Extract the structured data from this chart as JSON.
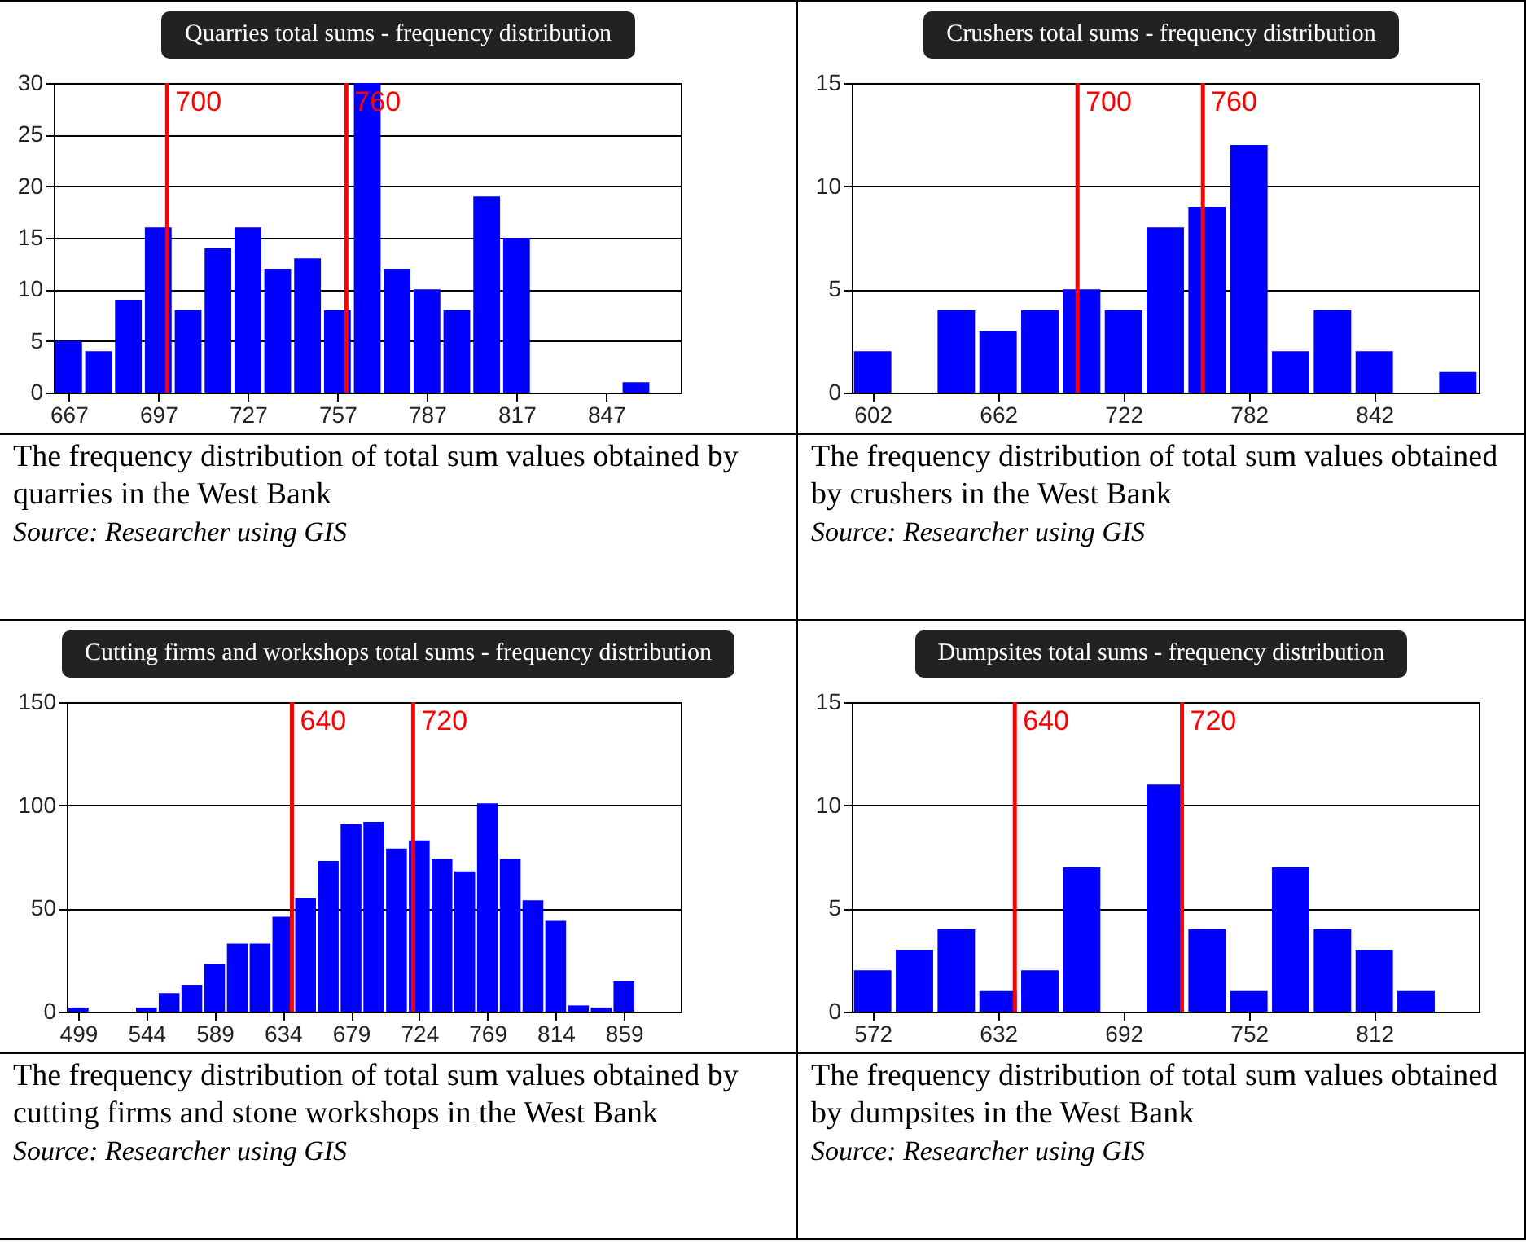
{
  "chart_data": [
    {
      "type": "bar",
      "title": "Quarries total sums - frequency distribution",
      "x": [
        667,
        677,
        687,
        697,
        707,
        717,
        727,
        737,
        747,
        757,
        767,
        777,
        787,
        797,
        807,
        817,
        827,
        837,
        847,
        857
      ],
      "values": [
        5,
        4,
        9,
        16,
        8,
        14,
        16,
        12,
        13,
        8,
        30,
        12,
        10,
        8,
        19,
        15,
        0,
        0,
        0,
        1
      ],
      "color": "#0000ff",
      "xlim": [
        662,
        872
      ],
      "xticks": [
        667,
        697,
        727,
        757,
        787,
        817,
        847
      ],
      "ylim": [
        0,
        30
      ],
      "yticks": [
        0,
        5,
        10,
        15,
        20,
        25,
        30
      ],
      "grid": "y",
      "ref_lines": [
        {
          "axis": "x",
          "value": 700,
          "label": "700",
          "color": "#ff0000"
        },
        {
          "axis": "x",
          "value": 760,
          "label": "760",
          "color": "#ff0000"
        }
      ],
      "annotations": [
        "The frequency distribution of total sum values obtained by quarries in the West Bank",
        "Source: Researcher using GIS"
      ]
    },
    {
      "type": "bar",
      "title": "Crushers total sums - frequency distribution",
      "x": [
        602,
        622,
        642,
        662,
        682,
        702,
        722,
        742,
        762,
        782,
        802,
        822,
        842,
        862,
        882
      ],
      "values": [
        2,
        0,
        4,
        3,
        4,
        5,
        4,
        8,
        9,
        12,
        2,
        4,
        2,
        0,
        1
      ],
      "color": "#0000ff",
      "xlim": [
        592,
        892
      ],
      "xticks": [
        602,
        662,
        722,
        782,
        842
      ],
      "ylim": [
        0,
        15
      ],
      "yticks": [
        0,
        5,
        10,
        15
      ],
      "grid": "y",
      "ref_lines": [
        {
          "axis": "x",
          "value": 700,
          "label": "700",
          "color": "#ff0000"
        },
        {
          "axis": "x",
          "value": 760,
          "label": "760",
          "color": "#ff0000"
        }
      ],
      "annotations": [
        "The frequency distribution of total sum values obtained by crushers in the West Bank",
        "Source: Researcher using GIS"
      ]
    },
    {
      "type": "bar",
      "title": "Cutting firms and workshops total sums - frequency distribution",
      "x": [
        499,
        514,
        529,
        544,
        559,
        574,
        589,
        604,
        619,
        634,
        649,
        664,
        679,
        694,
        709,
        724,
        739,
        754,
        769,
        784,
        799,
        814,
        829,
        844,
        859
      ],
      "values": [
        2,
        0,
        0,
        2,
        9,
        13,
        23,
        33,
        33,
        46,
        55,
        73,
        91,
        92,
        79,
        83,
        74,
        68,
        101,
        74,
        54,
        44,
        3,
        2,
        15
      ],
      "color": "#0000ff",
      "xlim": [
        491.5,
        896.5
      ],
      "xticks": [
        499,
        544,
        589,
        634,
        679,
        724,
        769,
        814,
        859
      ],
      "ylim": [
        0,
        150
      ],
      "yticks": [
        0,
        50,
        100,
        150
      ],
      "grid": "y",
      "ref_lines": [
        {
          "axis": "x",
          "value": 640,
          "label": "640",
          "color": "#ff0000"
        },
        {
          "axis": "x",
          "value": 720,
          "label": "720",
          "color": "#ff0000"
        }
      ],
      "annotations": [
        "The frequency distribution of total sum values obtained by cutting firms and stone workshops in the West Bank",
        "Source: Researcher using GIS"
      ]
    },
    {
      "type": "bar",
      "title": "Dumpsites total sums - frequency distribution",
      "x": [
        572,
        592,
        612,
        632,
        652,
        672,
        692,
        712,
        732,
        752,
        772,
        792,
        812,
        832
      ],
      "values": [
        2,
        3,
        4,
        1,
        2,
        7,
        0,
        11,
        4,
        1,
        7,
        4,
        3,
        1
      ],
      "color": "#0000ff",
      "xlim": [
        562,
        862
      ],
      "xticks": [
        572,
        632,
        692,
        752,
        812
      ],
      "ylim": [
        0,
        15
      ],
      "yticks": [
        0,
        5,
        10,
        15
      ],
      "grid": "y",
      "ref_lines": [
        {
          "axis": "x",
          "value": 640,
          "label": "640",
          "color": "#ff0000"
        },
        {
          "axis": "x",
          "value": 720,
          "label": "720",
          "color": "#ff0000"
        }
      ],
      "annotations": [
        "The frequency distribution of total sum values obtained by dumpsites in the West Bank",
        "Source: Researcher using GIS"
      ]
    }
  ]
}
